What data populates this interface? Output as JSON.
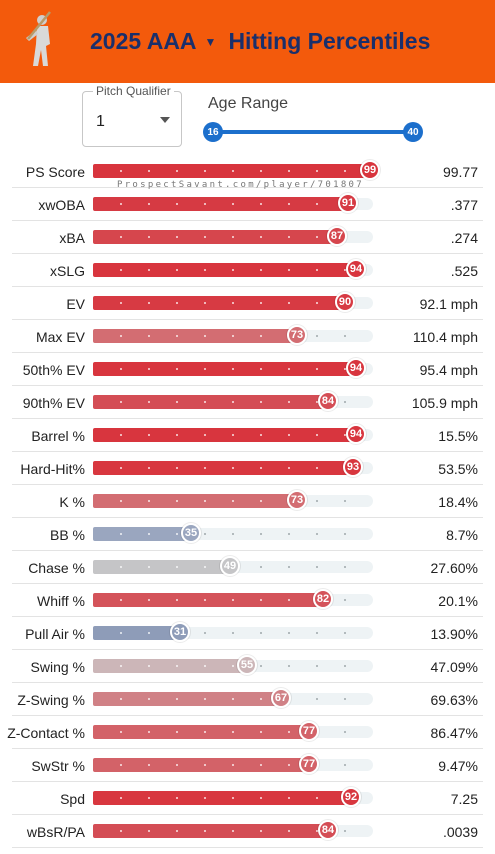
{
  "header": {
    "title_year_level": "2025 AAA",
    "title_main": "Hitting Percentiles",
    "logo_icon": "batter-silhouette-icon",
    "bg_color": "#f35a0c",
    "title_color": "#1a2f6b"
  },
  "controls": {
    "pitch_qualifier_label": "Pitch Qualifier",
    "pitch_qualifier_value": "1",
    "age_range_label": "Age Range",
    "age_min": "16",
    "age_max": "40"
  },
  "watermark": "ProspectSavant.com/player/701807",
  "rows": [
    {
      "label": "PS Score",
      "pct": 99,
      "value": "99.77",
      "color": "#d8343d"
    },
    {
      "label": "xwOBA",
      "pct": 91,
      "value": ".377",
      "color": "#d63a43"
    },
    {
      "label": "xBA",
      "pct": 87,
      "value": ".274",
      "color": "#d6464d"
    },
    {
      "label": "xSLG",
      "pct": 94,
      "value": ".525",
      "color": "#d8353e"
    },
    {
      "label": "EV",
      "pct": 90,
      "value": "92.1 mph",
      "color": "#d73a43"
    },
    {
      "label": "Max EV",
      "pct": 73,
      "value": "110.4 mph",
      "color": "#d36d72"
    },
    {
      "label": "50th% EV",
      "pct": 94,
      "value": "95.4 mph",
      "color": "#d8353e"
    },
    {
      "label": "90th% EV",
      "pct": 84,
      "value": "105.9 mph",
      "color": "#d44d55"
    },
    {
      "label": "Barrel %",
      "pct": 94,
      "value": "15.5%",
      "color": "#d8353e"
    },
    {
      "label": "Hard-Hit%",
      "pct": 93,
      "value": "53.5%",
      "color": "#d8373f"
    },
    {
      "label": "K %",
      "pct": 73,
      "value": "18.4%",
      "color": "#d36d72"
    },
    {
      "label": "BB %",
      "pct": 35,
      "value": "8.7%",
      "color": "#9aa6bf"
    },
    {
      "label": "Chase %",
      "pct": 49,
      "value": "27.60%",
      "color": "#c5c5c7"
    },
    {
      "label": "Whiff %",
      "pct": 82,
      "value": "20.1%",
      "color": "#d4535a"
    },
    {
      "label": "Pull Air %",
      "pct": 31,
      "value": "13.90%",
      "color": "#8e9cb8"
    },
    {
      "label": "Swing %",
      "pct": 55,
      "value": "47.09%",
      "color": "#ccb6b8"
    },
    {
      "label": "Z-Swing %",
      "pct": 67,
      "value": "69.63%",
      "color": "#d08186"
    },
    {
      "label": "Z-Contact %",
      "pct": 77,
      "value": "86.47%",
      "color": "#d36268"
    },
    {
      "label": "SwStr %",
      "pct": 77,
      "value": "9.47%",
      "color": "#d36268"
    },
    {
      "label": "Spd",
      "pct": 92,
      "value": "7.25",
      "color": "#d8373f"
    },
    {
      "label": "wBsR/PA",
      "pct": 84,
      "value": ".0039",
      "color": "#d44d55"
    }
  ]
}
